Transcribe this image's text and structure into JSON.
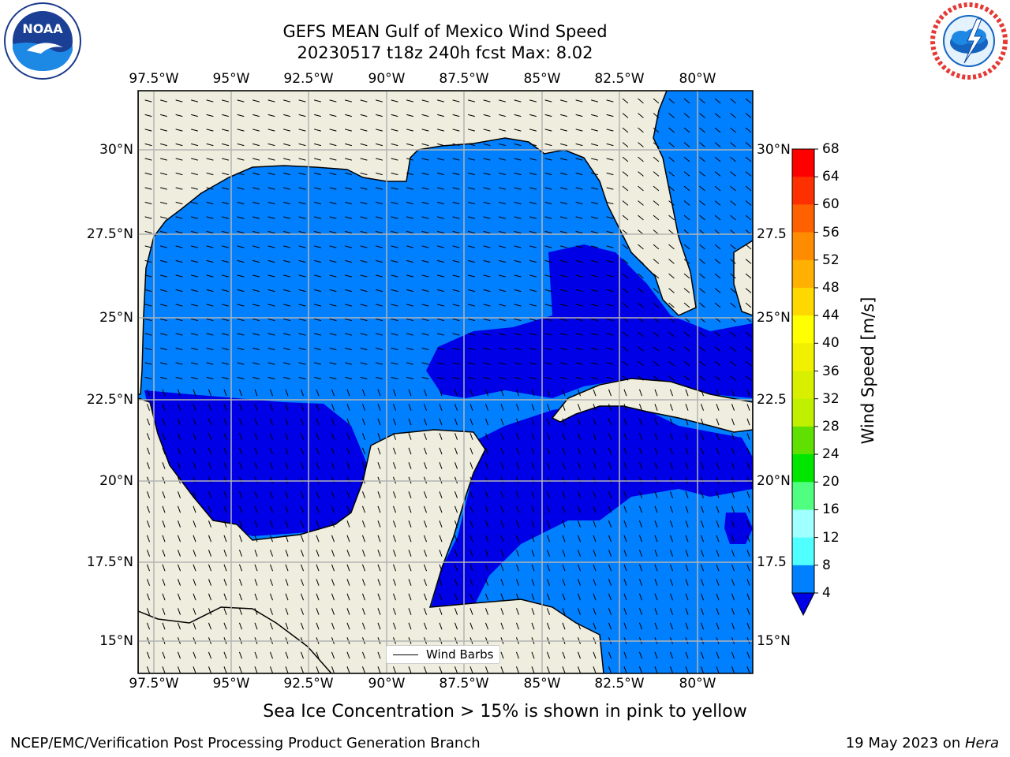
{
  "header": {
    "title_line1": "GEFS MEAN Gulf of Mexico Wind Speed",
    "title_line2": "20230517 t18z 240h fcst   Max: 8.02",
    "left_logo": "noaa-logo",
    "right_logo": "nws-logo",
    "noaa_text": "NOAA"
  },
  "map": {
    "lon_ticks": [
      "97.5°W",
      "95°W",
      "92.5°W",
      "90°W",
      "87.5°W",
      "85°W",
      "82.5°W",
      "80°W"
    ],
    "lat_ticks_left": [
      "30°N",
      "27.5°N",
      "25°N",
      "22.5°N",
      "20°N",
      "17.5°N",
      "15°N"
    ],
    "lat_ticks_right": [
      "30°N",
      "27.5",
      "25°N",
      "22.5",
      "20°N",
      "17.5",
      "15°N"
    ],
    "legend_label": "Wind Barbs",
    "colors": {
      "land": "#efedde",
      "ocean_4_8": "#0080ff",
      "ocean_below_4": "#0000e6",
      "grid": "#b4b4b4",
      "coast": "#000000"
    }
  },
  "colorbar": {
    "title": "Wind Speed [m/s]",
    "labels": [
      "68",
      "64",
      "60",
      "56",
      "52",
      "48",
      "44",
      "40",
      "36",
      "32",
      "28",
      "24",
      "20",
      "16",
      "12",
      "8",
      "4"
    ],
    "colors": [
      "#ff0000",
      "#ff3000",
      "#ff6000",
      "#ff8c00",
      "#ffb000",
      "#ffd800",
      "#ffff00",
      "#f0f000",
      "#d8f000",
      "#c0f000",
      "#60e000",
      "#00e600",
      "#50ff80",
      "#a0ffff",
      "#50ffff",
      "#00f0ff",
      "#00e0ff",
      "#0080ff"
    ],
    "under_color": "#0000e6"
  },
  "caption": "Sea Ice Concentration > 15% is shown in pink to yellow",
  "footer": {
    "left": "NCEP/EMC/Verification Post Processing Product Generation Branch",
    "right_prefix": "19 May 2023 on ",
    "right_host": "Hera"
  }
}
